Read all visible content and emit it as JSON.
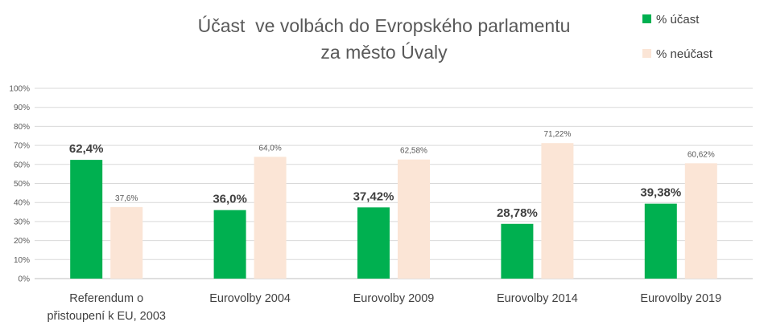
{
  "chart_data": {
    "type": "bar",
    "title_lines": [
      "Účast  ve volbách do Evropského parlamentu",
      "za město Úvaly"
    ],
    "categories": [
      [
        "Referendum o",
        "přistoupení k EU, 2003"
      ],
      [
        "Eurovolby 2004"
      ],
      [
        "Eurovolby 2009"
      ],
      [
        "Eurovolby 2014"
      ],
      [
        "Eurovolby 2019"
      ]
    ],
    "series": [
      {
        "name": "% účast",
        "color": "#00b050",
        "values": [
          62.4,
          36.0,
          37.42,
          28.78,
          39.38
        ],
        "labels": [
          "62,4%",
          "36,0%",
          "37,42%",
          "28,78%",
          "39,38%"
        ]
      },
      {
        "name": "% neúčast",
        "color": "#fbe5d6",
        "values": [
          37.6,
          64.0,
          62.58,
          71.22,
          60.62
        ],
        "labels": [
          "37,6%",
          "64,0%",
          "62,58%",
          "71,22%",
          "60,62%"
        ]
      }
    ],
    "y_ticks": [
      "0%",
      "10%",
      "20%",
      "30%",
      "40%",
      "50%",
      "60%",
      "70%",
      "80%",
      "90%",
      "100%"
    ],
    "ylim": [
      0,
      100
    ],
    "grid": true,
    "legend_position": "top-right"
  }
}
